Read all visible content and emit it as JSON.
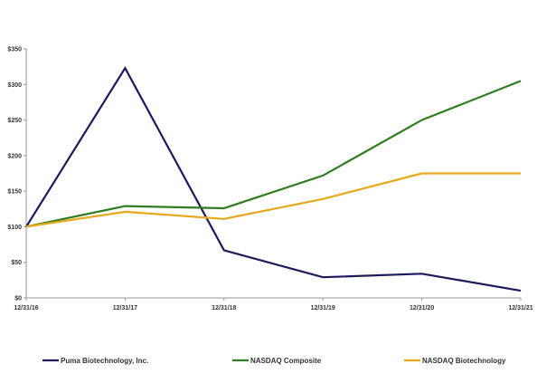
{
  "chart_data": {
    "type": "line",
    "title": "",
    "xlabel": "",
    "ylabel": "",
    "categories": [
      "12/31/16",
      "12/31/17",
      "12/31/18",
      "12/31/19",
      "12/31/20",
      "12/31/21"
    ],
    "y_tick_labels": [
      "$0",
      "$50",
      "$100",
      "$150",
      "$200",
      "$250",
      "$300",
      "$350"
    ],
    "ylim": [
      0,
      350
    ],
    "grid": false,
    "legend_position": "bottom",
    "series": [
      {
        "name": "Puma Biotechnology, Inc.",
        "color": "#1b1a5e",
        "values": [
          100,
          323,
          67,
          29,
          34,
          10
        ]
      },
      {
        "name": "NASDAQ Composite",
        "color": "#2e7d1f",
        "values": [
          100,
          129,
          126,
          172,
          250,
          305
        ]
      },
      {
        "name": "NASDAQ Biotechnology",
        "color": "#e8a81c",
        "values": [
          100,
          121,
          111,
          139,
          175,
          175
        ]
      }
    ]
  }
}
